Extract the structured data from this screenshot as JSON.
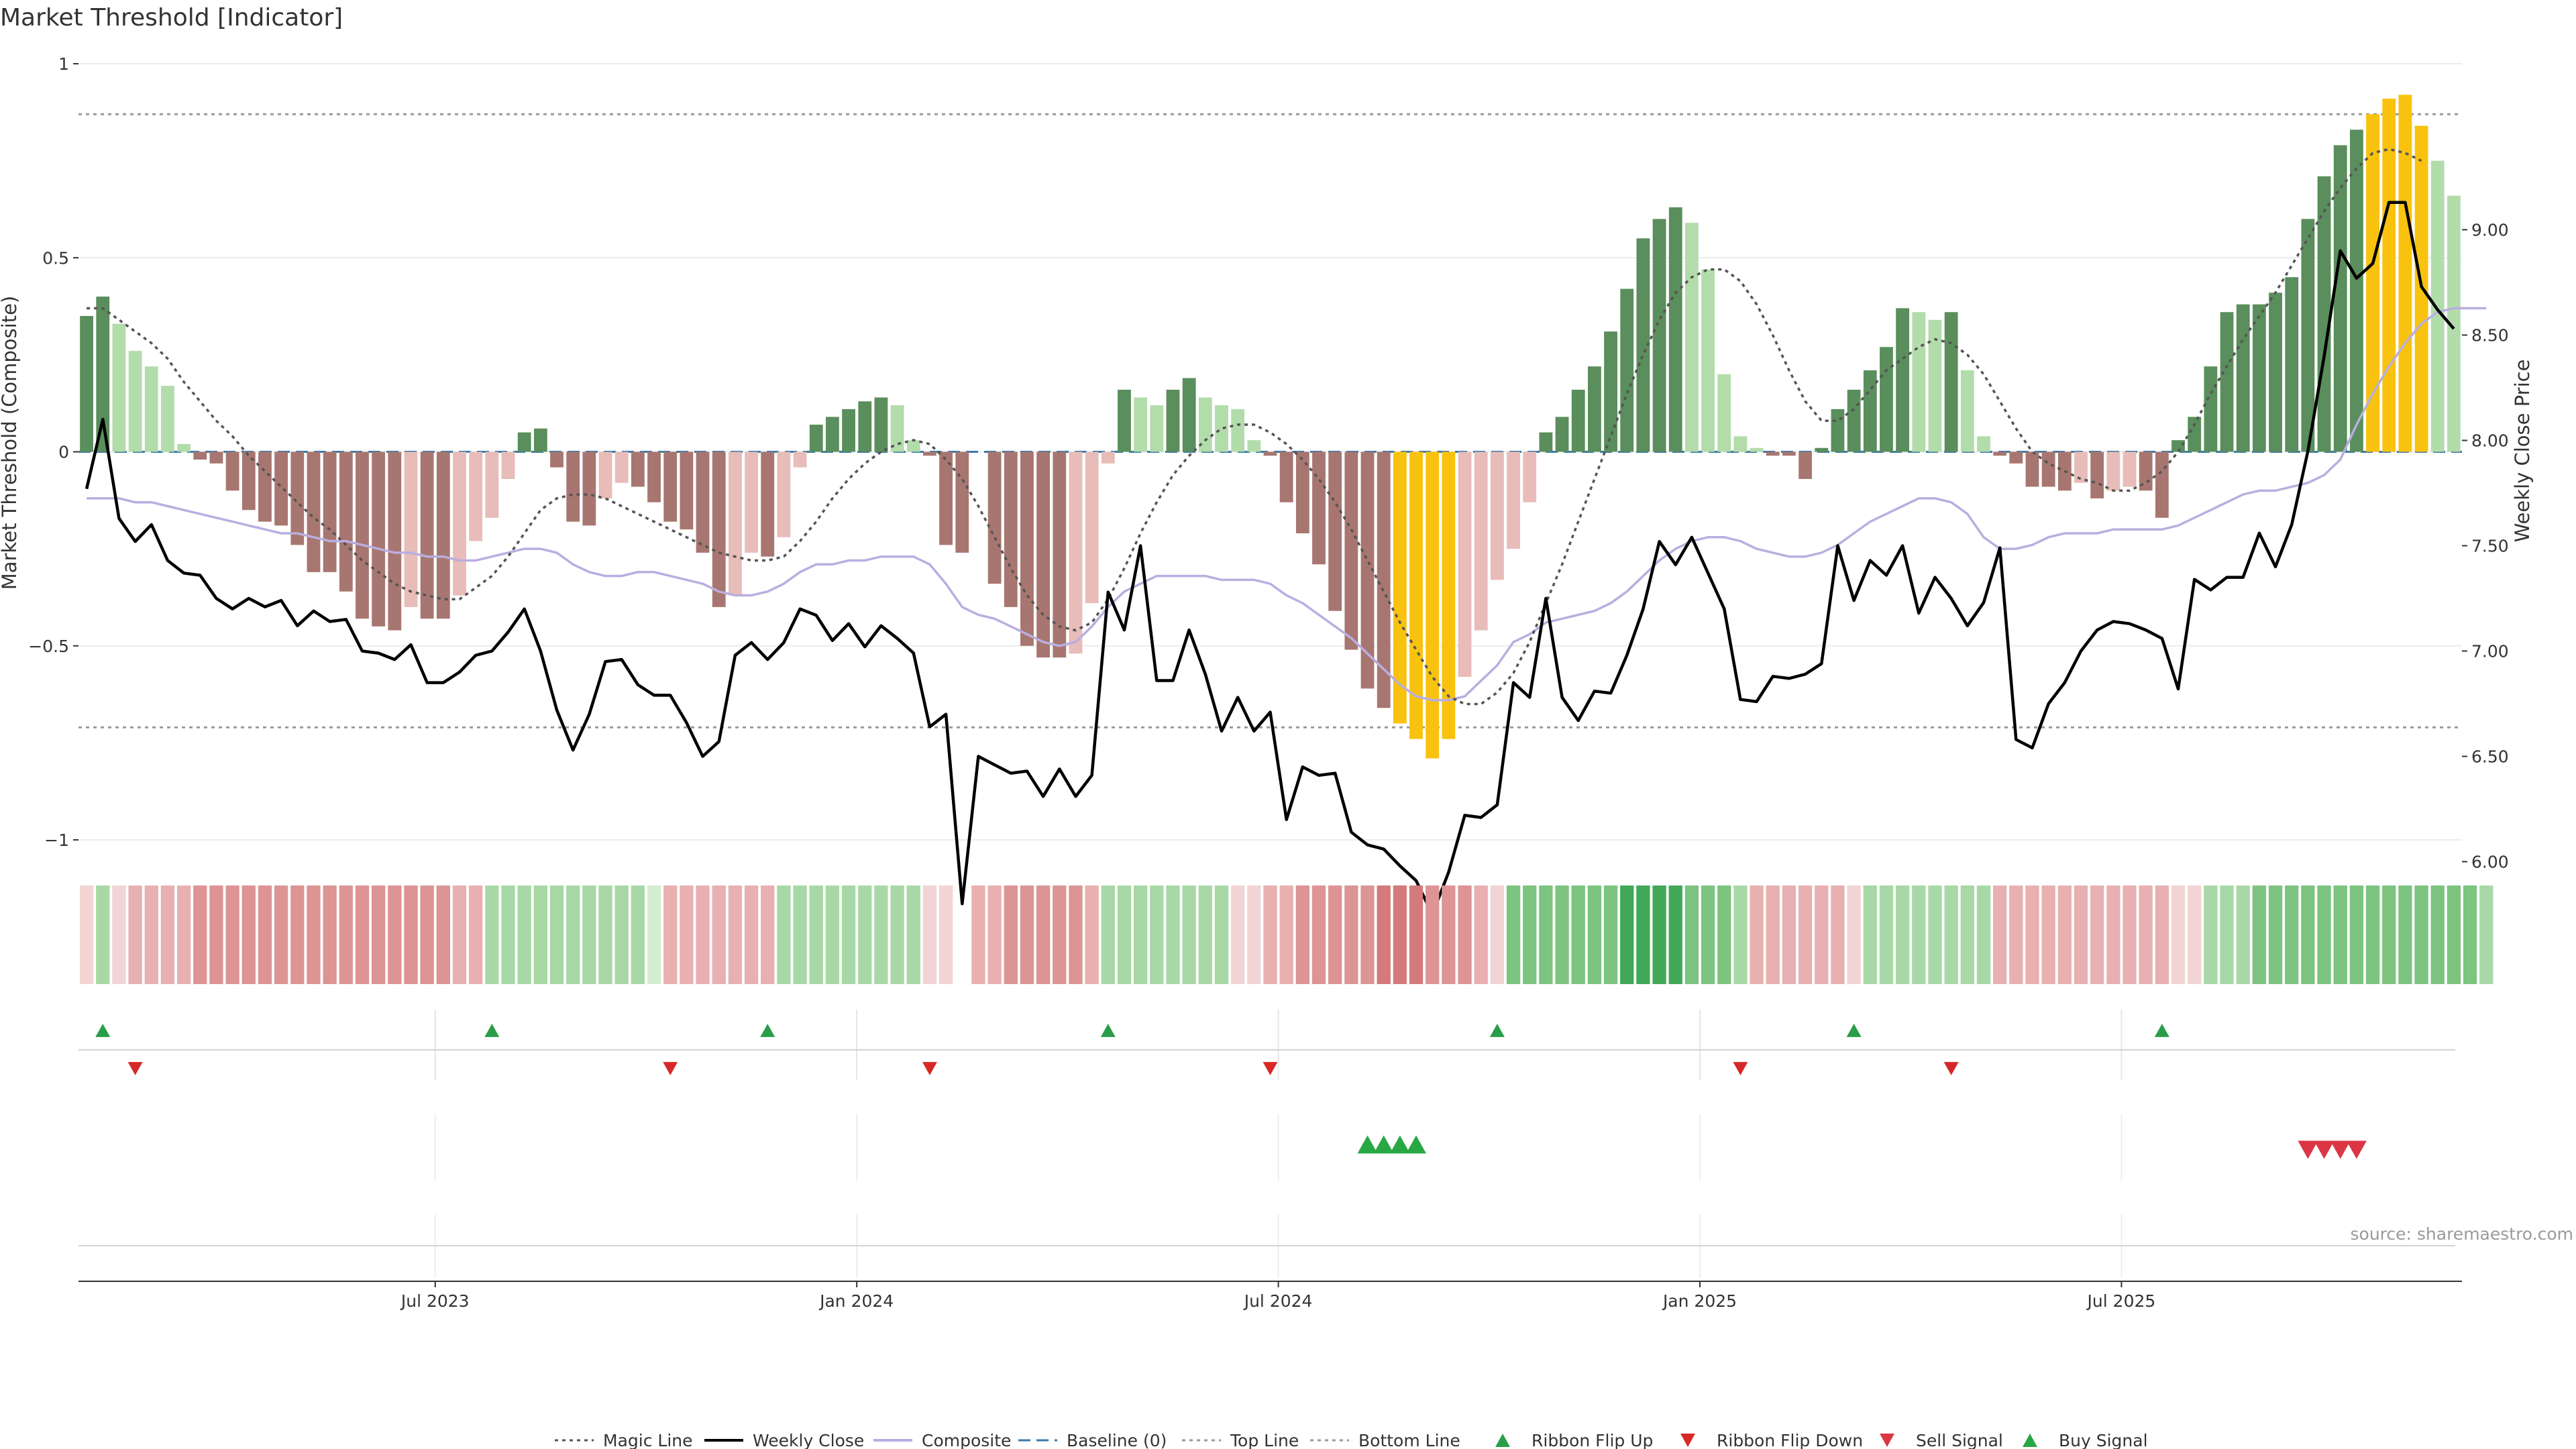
{
  "chart_data": {
    "type": "bar",
    "title": "Market Threshold [Indicator]",
    "ylabel_left": "Market Threshold (Composite)",
    "ylabel_right": "Weekly Close Price",
    "source": "source: sharemaestro.com",
    "ylim_left": [
      -1,
      1
    ],
    "ylim_right": [
      5.6,
      9.6
    ],
    "yticks_left": [
      {
        "value": 1,
        "label": "1"
      },
      {
        "value": 0.5,
        "label": "0.5"
      },
      {
        "value": 0,
        "label": "0"
      },
      {
        "value": -0.5,
        "label": "−0.5"
      },
      {
        "value": -1,
        "label": "−1"
      }
    ],
    "yticks_right": [
      {
        "value": 9.0,
        "label": "9.00"
      },
      {
        "value": 8.5,
        "label": "8.50"
      },
      {
        "value": 8.0,
        "label": "8.00"
      },
      {
        "value": 7.5,
        "label": "7.50"
      },
      {
        "value": 7.0,
        "label": "7.00"
      },
      {
        "value": 6.5,
        "label": "6.50"
      },
      {
        "value": 6.0,
        "label": "6.00"
      }
    ],
    "xticks": [
      {
        "index": 22,
        "label": "Jul 2023"
      },
      {
        "index": 48,
        "label": "Jan 2024"
      },
      {
        "index": 74,
        "label": "Jul 2024"
      },
      {
        "index": 100,
        "label": "Jan 2025"
      },
      {
        "index": 126,
        "label": "Jul 2025"
      }
    ],
    "top_line": 0.87,
    "bottom_line": -0.71,
    "baseline": 0,
    "composite_values": [
      0.35,
      0.4,
      0.33,
      0.26,
      0.22,
      0.17,
      0.02,
      -0.02,
      -0.03,
      -0.1,
      -0.15,
      -0.18,
      -0.19,
      -0.24,
      -0.31,
      -0.31,
      -0.36,
      -0.43,
      -0.45,
      -0.46,
      -0.4,
      -0.43,
      -0.43,
      -0.37,
      -0.23,
      -0.17,
      -0.07,
      0.05,
      0.06,
      -0.04,
      -0.18,
      -0.19,
      -0.12,
      -0.08,
      -0.09,
      -0.13,
      -0.18,
      -0.2,
      -0.26,
      -0.4,
      -0.37,
      -0.26,
      -0.27,
      -0.22,
      -0.04,
      0.07,
      0.09,
      0.11,
      0.13,
      0.14,
      0.12,
      0.03,
      -0.01,
      -0.24,
      -0.26,
      0,
      -0.34,
      -0.4,
      -0.5,
      -0.53,
      -0.53,
      -0.52,
      -0.39,
      -0.03,
      0.16,
      0.14,
      0.12,
      0.16,
      0.19,
      0.14,
      0.12,
      0.11,
      0.03,
      -0.01,
      -0.13,
      -0.21,
      -0.29,
      -0.41,
      -0.51,
      -0.61,
      -0.66,
      -0.7,
      -0.74,
      -0.79,
      -0.74,
      -0.58,
      -0.46,
      -0.33,
      -0.25,
      -0.13,
      0.05,
      0.09,
      0.16,
      0.22,
      0.31,
      0.42,
      0.55,
      0.6,
      0.63,
      0.59,
      0.47,
      0.2,
      0.04,
      0.01,
      -0.01,
      -0.01,
      -0.07,
      0.01,
      0.11,
      0.16,
      0.21,
      0.27,
      0.37,
      0.36,
      0.34,
      0.36,
      0.21,
      0.04,
      -0.01,
      -0.03,
      -0.09,
      -0.09,
      -0.1,
      -0.08,
      -0.12,
      -0.1,
      -0.09,
      -0.1,
      -0.17,
      0.03,
      0.09,
      0.22,
      0.36,
      0.38,
      0.38,
      0.41,
      0.45,
      0.6,
      0.71,
      0.79,
      0.83,
      0.87,
      0.91,
      0.92,
      0.84,
      0.75,
      0.66
    ],
    "bar_colors": {
      "pos_light": "#b3dcab",
      "pos_dark": "#5a8e5c",
      "neg_light": "#e8bcb8",
      "neg_dark": "#a87670",
      "extreme": "#f8c20e"
    },
    "weekly_close": [
      7.77,
      8.1,
      7.63,
      7.52,
      7.6,
      7.43,
      7.37,
      7.36,
      7.25,
      7.2,
      7.25,
      7.21,
      7.24,
      7.12,
      7.19,
      7.14,
      7.15,
      7.0,
      6.99,
      6.96,
      7.03,
      6.85,
      6.85,
      6.9,
      6.98,
      7.0,
      7.09,
      7.2,
      7.0,
      6.72,
      6.53,
      6.7,
      6.95,
      6.96,
      6.84,
      6.79,
      6.79,
      6.66,
      6.5,
      6.57,
      6.98,
      7.04,
      6.96,
      7.04,
      7.2,
      7.17,
      7.05,
      7.13,
      7.02,
      7.12,
      7.06,
      6.99,
      6.64,
      6.7,
      5.8,
      6.5,
      6.46,
      6.42,
      6.43,
      6.31,
      6.44,
      6.31,
      6.41,
      7.28,
      7.1,
      7.5,
      6.86,
      6.86,
      7.1,
      6.89,
      6.62,
      6.78,
      6.62,
      6.71,
      6.2,
      6.45,
      6.41,
      6.42,
      6.14,
      6.08,
      6.06,
      5.98,
      5.91,
      5.75,
      5.95,
      6.22,
      6.21,
      6.27,
      6.85,
      6.78,
      7.25,
      6.78,
      6.67,
      6.81,
      6.8,
      6.98,
      7.2,
      7.52,
      7.41,
      7.54,
      7.37,
      7.2,
      6.77,
      6.76,
      6.88,
      6.87,
      6.89,
      6.94,
      7.5,
      7.24,
      7.43,
      7.36,
      7.5,
      7.18,
      7.35,
      7.25,
      7.12,
      7.23,
      7.49,
      6.58,
      6.54,
      6.75,
      6.85,
      7.0,
      7.1,
      7.14,
      7.13,
      7.1,
      7.06,
      6.82,
      7.34,
      7.29,
      7.35,
      7.35,
      7.56,
      7.4,
      7.6,
      7.95,
      8.4,
      8.9,
      8.77,
      8.84,
      9.13,
      9.13,
      8.73,
      8.62,
      8.53
    ],
    "magic_line": [
      0.37,
      0.37,
      0.34,
      0.31,
      0.28,
      0.24,
      0.18,
      0.13,
      0.08,
      0.04,
      -0.01,
      -0.05,
      -0.09,
      -0.13,
      -0.17,
      -0.2,
      -0.24,
      -0.28,
      -0.31,
      -0.34,
      -0.36,
      -0.37,
      -0.38,
      -0.38,
      -0.35,
      -0.32,
      -0.27,
      -0.21,
      -0.15,
      -0.12,
      -0.11,
      -0.11,
      -0.12,
      -0.14,
      -0.16,
      -0.18,
      -0.2,
      -0.22,
      -0.24,
      -0.26,
      -0.27,
      -0.28,
      -0.28,
      -0.27,
      -0.23,
      -0.18,
      -0.12,
      -0.07,
      -0.03,
      0,
      0.02,
      0.03,
      0.02,
      -0.02,
      -0.07,
      -0.14,
      -0.22,
      -0.3,
      -0.37,
      -0.42,
      -0.45,
      -0.46,
      -0.44,
      -0.38,
      -0.3,
      -0.21,
      -0.13,
      -0.06,
      -0.01,
      0.03,
      0.06,
      0.07,
      0.07,
      0.05,
      0.02,
      -0.02,
      -0.07,
      -0.13,
      -0.2,
      -0.28,
      -0.36,
      -0.44,
      -0.51,
      -0.58,
      -0.63,
      -0.65,
      -0.65,
      -0.62,
      -0.57,
      -0.49,
      -0.39,
      -0.29,
      -0.18,
      -0.07,
      0.04,
      0.15,
      0.25,
      0.34,
      0.41,
      0.45,
      0.47,
      0.47,
      0.44,
      0.38,
      0.3,
      0.21,
      0.13,
      0.08,
      0.08,
      0.11,
      0.16,
      0.21,
      0.24,
      0.27,
      0.29,
      0.28,
      0.25,
      0.2,
      0.13,
      0.06,
      0,
      -0.03,
      -0.05,
      -0.07,
      -0.08,
      -0.1,
      -0.1,
      -0.08,
      -0.05,
      0,
      0.07,
      0.15,
      0.22,
      0.29,
      0.35,
      0.41,
      0.48,
      0.55,
      0.62,
      0.68,
      0.73,
      0.77,
      0.78,
      0.77,
      0.75
    ],
    "composite_line": [
      -0.12,
      -0.12,
      -0.12,
      -0.13,
      -0.13,
      -0.14,
      -0.15,
      -0.16,
      -0.17,
      -0.18,
      -0.19,
      -0.2,
      -0.21,
      -0.21,
      -0.22,
      -0.23,
      -0.23,
      -0.24,
      -0.25,
      -0.26,
      -0.26,
      -0.27,
      -0.27,
      -0.28,
      -0.28,
      -0.27,
      -0.26,
      -0.25,
      -0.25,
      -0.26,
      -0.29,
      -0.31,
      -0.32,
      -0.32,
      -0.31,
      -0.31,
      -0.32,
      -0.33,
      -0.34,
      -0.36,
      -0.37,
      -0.37,
      -0.36,
      -0.34,
      -0.31,
      -0.29,
      -0.29,
      -0.28,
      -0.28,
      -0.27,
      -0.27,
      -0.27,
      -0.29,
      -0.34,
      -0.4,
      -0.42,
      -0.43,
      -0.45,
      -0.47,
      -0.49,
      -0.5,
      -0.49,
      -0.45,
      -0.4,
      -0.36,
      -0.34,
      -0.32,
      -0.32,
      -0.32,
      -0.32,
      -0.33,
      -0.33,
      -0.33,
      -0.34,
      -0.37,
      -0.39,
      -0.42,
      -0.45,
      -0.48,
      -0.52,
      -0.56,
      -0.6,
      -0.63,
      -0.64,
      -0.64,
      -0.63,
      -0.59,
      -0.55,
      -0.49,
      -0.47,
      -0.44,
      -0.43,
      -0.42,
      -0.41,
      -0.39,
      -0.36,
      -0.32,
      -0.28,
      -0.25,
      -0.23,
      -0.22,
      -0.22,
      -0.23,
      -0.25,
      -0.26,
      -0.27,
      -0.27,
      -0.26,
      -0.24,
      -0.21,
      -0.18,
      -0.16,
      -0.14,
      -0.12,
      -0.12,
      -0.13,
      -0.16,
      -0.22,
      -0.25,
      -0.25,
      -0.24,
      -0.22,
      -0.21,
      -0.21,
      -0.21,
      -0.2,
      -0.2,
      -0.2,
      -0.2,
      -0.19,
      -0.17,
      -0.15,
      -0.13,
      -0.11,
      -0.1,
      -0.1,
      -0.09,
      -0.08,
      -0.06,
      -0.02,
      0.07,
      0.15,
      0.22,
      0.28,
      0.33,
      0.36,
      0.37,
      0.37,
      0.37
    ],
    "ribbon": {
      "colors": {
        "green_1": "#d4ecd0",
        "green_2": "#a8d8a6",
        "green_3": "#7cc47f",
        "green_4": "#41a858",
        "red_1": "#f2d4d4",
        "red_2": "#e8b0b0",
        "red_3": "#dc9494",
        "red_4": "#d47a7a"
      },
      "levels": [
        -1,
        2,
        -1,
        -2,
        -2,
        -2,
        -2,
        -3,
        -3,
        -3,
        -3,
        -3,
        -3,
        -3,
        -3,
        -3,
        -3,
        -3,
        -3,
        -3,
        -3,
        -3,
        -3,
        -2,
        -2,
        2,
        2,
        2,
        2,
        2,
        2,
        2,
        2,
        2,
        2,
        1,
        -2,
        -2,
        -2,
        -2,
        -2,
        -2,
        -2,
        2,
        2,
        2,
        2,
        2,
        2,
        2,
        2,
        2,
        -1,
        -1,
        0,
        -2,
        -2,
        -3,
        -3,
        -3,
        -3,
        -3,
        -2,
        2,
        2,
        2,
        2,
        2,
        2,
        2,
        2,
        -1,
        -1,
        -2,
        -2,
        -3,
        -3,
        -3,
        -3,
        -3,
        -4,
        -4,
        -4,
        -3,
        -3,
        -3,
        -2,
        -1,
        3,
        3,
        3,
        3,
        3,
        3,
        3,
        4,
        4,
        4,
        4,
        3,
        3,
        3,
        2,
        -2,
        -2,
        -2,
        -2,
        -2,
        -2,
        -1,
        2,
        2,
        2,
        2,
        2,
        2,
        2,
        2,
        -2,
        -2,
        -2,
        -2,
        -2,
        -2,
        -2,
        -2,
        -2,
        -2,
        -2,
        -1,
        -1,
        2,
        2,
        2,
        3,
        3,
        3,
        3,
        3,
        3,
        3,
        3,
        3,
        3,
        3,
        3,
        3,
        3,
        2
      ]
    },
    "ribbon_flip_up": [
      1,
      25,
      42,
      63,
      87,
      109,
      128
    ],
    "ribbon_flip_down": [
      3,
      36,
      52,
      73,
      102,
      115
    ],
    "buy_signal": [
      79,
      80,
      81,
      82
    ],
    "sell_signal": [
      137,
      138,
      139,
      140
    ],
    "legend": [
      {
        "label": "Magic Line",
        "kind": "dotted-line",
        "color": "#555555"
      },
      {
        "label": "Weekly Close",
        "kind": "solid-line",
        "color": "#000000"
      },
      {
        "label": "Composite",
        "kind": "solid-line",
        "color": "#b9aee0"
      },
      {
        "label": "Baseline (0)",
        "kind": "dashed-line",
        "color": "#3c7aa8"
      },
      {
        "label": "Top Line",
        "kind": "dotted-line",
        "color": "#999999"
      },
      {
        "label": "Bottom Line",
        "kind": "dotted-line",
        "color": "#999999"
      },
      {
        "label": "Ribbon Flip Up",
        "kind": "up-triangle",
        "color": "#2a9d4a"
      },
      {
        "label": "Ribbon Flip Down",
        "kind": "down-triangle",
        "color": "#d62828"
      },
      {
        "label": "Sell Signal",
        "kind": "down-triangle",
        "color": "#dc3545"
      },
      {
        "label": "Buy Signal",
        "kind": "up-triangle",
        "color": "#28a745"
      }
    ]
  }
}
